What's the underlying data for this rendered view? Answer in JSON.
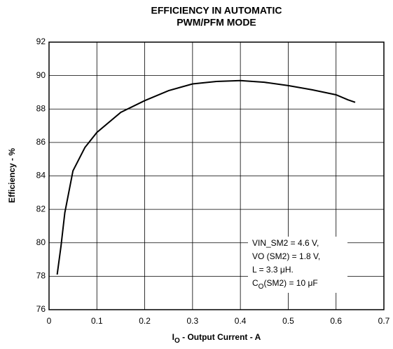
{
  "chart_data": {
    "type": "line",
    "title": [
      "EFFICIENCY IN AUTOMATIC",
      "PWM/PFM MODE"
    ],
    "ylabel": "Efficiency - %",
    "xlabel": {
      "main": "I",
      "sub": "O",
      "rest": " - Output Current - A"
    },
    "annotation": {
      "lines": [
        "VIN_SM2 = 4.6 V,",
        "VO (SM2) = 1.8 V,",
        "L = 3.3 μH."
      ],
      "last": {
        "main": "C",
        "sub": "O",
        "rest": "(SM2) = 10 μF"
      }
    },
    "x": [
      0.017,
      0.025,
      0.033,
      0.05,
      0.075,
      0.1,
      0.15,
      0.2,
      0.25,
      0.3,
      0.35,
      0.4,
      0.45,
      0.5,
      0.55,
      0.6,
      0.625,
      0.64
    ],
    "values": [
      78.1,
      79.8,
      81.8,
      84.3,
      85.7,
      86.6,
      87.8,
      88.5,
      89.1,
      89.5,
      89.65,
      89.7,
      89.6,
      89.4,
      89.15,
      88.85,
      88.55,
      88.4
    ],
    "color": "#000000",
    "xlim": [
      0,
      0.7
    ],
    "xticks": [
      0,
      0.1,
      0.2,
      0.3,
      0.4,
      0.5,
      0.6,
      0.7
    ],
    "ylim": [
      76,
      92
    ],
    "yticks": [
      76,
      78,
      80,
      82,
      84,
      86,
      88,
      90,
      92
    ],
    "grid": true
  }
}
